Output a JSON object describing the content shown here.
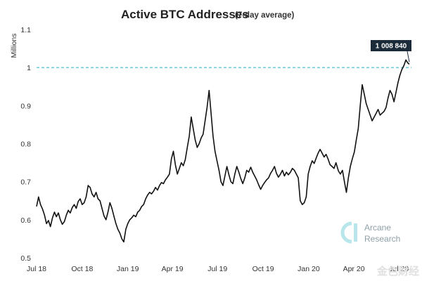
{
  "chart_data": {
    "type": "line",
    "title": "Active BTC Addresses",
    "subtitle": "(7-day average)",
    "ylabel": "Millions",
    "xlabel": "",
    "ylim": [
      0.5,
      1.1
    ],
    "yticks": [
      "0.5",
      "0.6",
      "0.7",
      "0.8",
      "0.9",
      "1",
      "1.1"
    ],
    "xticks": [
      {
        "label": "Jul 18",
        "x": "2018-07-01"
      },
      {
        "label": "Oct 18",
        "x": "2018-10-01"
      },
      {
        "label": "Jan 19",
        "x": "2019-01-01"
      },
      {
        "label": "Apr 19",
        "x": "2019-04-01"
      },
      {
        "label": "Jul 19",
        "x": "2019-07-01"
      },
      {
        "label": "Oct 19",
        "x": "2019-10-01"
      },
      {
        "label": "Jan 20",
        "x": "2020-01-01"
      },
      {
        "label": "Apr 20",
        "x": "2020-04-01"
      },
      {
        "label": "Jul 20",
        "x": "2020-07-01"
      }
    ],
    "grid": false,
    "reference_line": {
      "y": 1.0,
      "style": "dashed",
      "color": "#5bc8d8"
    },
    "annotation": {
      "text": "1 008 840",
      "x": "2020-07-22",
      "y": 1.00884
    },
    "series": [
      {
        "color": "#111111",
        "points": [
          [
            "2018-07-01",
            0.635
          ],
          [
            "2018-07-05",
            0.66
          ],
          [
            "2018-07-09",
            0.64
          ],
          [
            "2018-07-13",
            0.628
          ],
          [
            "2018-07-17",
            0.612
          ],
          [
            "2018-07-21",
            0.59
          ],
          [
            "2018-07-25",
            0.598
          ],
          [
            "2018-07-29",
            0.582
          ],
          [
            "2018-08-02",
            0.605
          ],
          [
            "2018-08-06",
            0.62
          ],
          [
            "2018-08-10",
            0.608
          ],
          [
            "2018-08-14",
            0.618
          ],
          [
            "2018-08-18",
            0.6
          ],
          [
            "2018-08-22",
            0.588
          ],
          [
            "2018-08-26",
            0.595
          ],
          [
            "2018-08-30",
            0.612
          ],
          [
            "2018-09-03",
            0.625
          ],
          [
            "2018-09-07",
            0.618
          ],
          [
            "2018-09-11",
            0.632
          ],
          [
            "2018-09-15",
            0.64
          ],
          [
            "2018-09-19",
            0.63
          ],
          [
            "2018-09-23",
            0.648
          ],
          [
            "2018-09-27",
            0.655
          ],
          [
            "2018-10-01",
            0.64
          ],
          [
            "2018-10-05",
            0.645
          ],
          [
            "2018-10-09",
            0.66
          ],
          [
            "2018-10-13",
            0.69
          ],
          [
            "2018-10-17",
            0.685
          ],
          [
            "2018-10-21",
            0.668
          ],
          [
            "2018-10-25",
            0.66
          ],
          [
            "2018-10-29",
            0.672
          ],
          [
            "2018-11-02",
            0.655
          ],
          [
            "2018-11-06",
            0.65
          ],
          [
            "2018-11-10",
            0.63
          ],
          [
            "2018-11-14",
            0.61
          ],
          [
            "2018-11-18",
            0.6
          ],
          [
            "2018-11-22",
            0.62
          ],
          [
            "2018-11-26",
            0.645
          ],
          [
            "2018-11-30",
            0.63
          ],
          [
            "2018-12-04",
            0.61
          ],
          [
            "2018-12-08",
            0.59
          ],
          [
            "2018-12-12",
            0.575
          ],
          [
            "2018-12-16",
            0.565
          ],
          [
            "2018-12-20",
            0.55
          ],
          [
            "2018-12-24",
            0.542
          ],
          [
            "2018-12-28",
            0.575
          ],
          [
            "2019-01-01",
            0.59
          ],
          [
            "2019-01-05",
            0.6
          ],
          [
            "2019-01-09",
            0.605
          ],
          [
            "2019-01-13",
            0.612
          ],
          [
            "2019-01-17",
            0.608
          ],
          [
            "2019-01-21",
            0.62
          ],
          [
            "2019-01-25",
            0.625
          ],
          [
            "2019-01-29",
            0.635
          ],
          [
            "2019-02-02",
            0.64
          ],
          [
            "2019-02-06",
            0.655
          ],
          [
            "2019-02-10",
            0.665
          ],
          [
            "2019-02-14",
            0.672
          ],
          [
            "2019-02-18",
            0.668
          ],
          [
            "2019-02-22",
            0.675
          ],
          [
            "2019-02-26",
            0.685
          ],
          [
            "2019-03-02",
            0.678
          ],
          [
            "2019-03-06",
            0.69
          ],
          [
            "2019-03-10",
            0.698
          ],
          [
            "2019-03-14",
            0.695
          ],
          [
            "2019-03-18",
            0.705
          ],
          [
            "2019-03-22",
            0.712
          ],
          [
            "2019-03-26",
            0.72
          ],
          [
            "2019-03-30",
            0.76
          ],
          [
            "2019-04-03",
            0.78
          ],
          [
            "2019-04-07",
            0.745
          ],
          [
            "2019-04-11",
            0.72
          ],
          [
            "2019-04-15",
            0.735
          ],
          [
            "2019-04-19",
            0.75
          ],
          [
            "2019-04-23",
            0.742
          ],
          [
            "2019-04-27",
            0.758
          ],
          [
            "2019-05-01",
            0.79
          ],
          [
            "2019-05-05",
            0.82
          ],
          [
            "2019-05-09",
            0.87
          ],
          [
            "2019-05-13",
            0.84
          ],
          [
            "2019-05-17",
            0.81
          ],
          [
            "2019-05-21",
            0.79
          ],
          [
            "2019-05-25",
            0.8
          ],
          [
            "2019-05-29",
            0.815
          ],
          [
            "2019-06-02",
            0.825
          ],
          [
            "2019-06-06",
            0.86
          ],
          [
            "2019-06-10",
            0.895
          ],
          [
            "2019-06-14",
            0.94
          ],
          [
            "2019-06-18",
            0.88
          ],
          [
            "2019-06-22",
            0.82
          ],
          [
            "2019-06-26",
            0.78
          ],
          [
            "2019-06-30",
            0.755
          ],
          [
            "2019-07-04",
            0.73
          ],
          [
            "2019-07-08",
            0.7
          ],
          [
            "2019-07-12",
            0.69
          ],
          [
            "2019-07-16",
            0.715
          ],
          [
            "2019-07-20",
            0.74
          ],
          [
            "2019-07-24",
            0.718
          ],
          [
            "2019-07-28",
            0.7
          ],
          [
            "2019-08-01",
            0.695
          ],
          [
            "2019-08-05",
            0.72
          ],
          [
            "2019-08-09",
            0.74
          ],
          [
            "2019-08-13",
            0.725
          ],
          [
            "2019-08-17",
            0.708
          ],
          [
            "2019-08-21",
            0.695
          ],
          [
            "2019-08-25",
            0.71
          ],
          [
            "2019-08-29",
            0.73
          ],
          [
            "2019-09-02",
            0.725
          ],
          [
            "2019-09-06",
            0.738
          ],
          [
            "2019-09-10",
            0.725
          ],
          [
            "2019-09-14",
            0.715
          ],
          [
            "2019-09-18",
            0.705
          ],
          [
            "2019-09-22",
            0.692
          ],
          [
            "2019-09-26",
            0.68
          ],
          [
            "2019-09-30",
            0.69
          ],
          [
            "2019-10-04",
            0.698
          ],
          [
            "2019-10-08",
            0.705
          ],
          [
            "2019-10-12",
            0.71
          ],
          [
            "2019-10-16",
            0.722
          ],
          [
            "2019-10-20",
            0.73
          ],
          [
            "2019-10-24",
            0.74
          ],
          [
            "2019-10-28",
            0.722
          ],
          [
            "2019-11-01",
            0.712
          ],
          [
            "2019-11-05",
            0.72
          ],
          [
            "2019-11-09",
            0.73
          ],
          [
            "2019-11-13",
            0.715
          ],
          [
            "2019-11-17",
            0.725
          ],
          [
            "2019-11-21",
            0.718
          ],
          [
            "2019-11-25",
            0.725
          ],
          [
            "2019-11-29",
            0.735
          ],
          [
            "2019-12-03",
            0.73
          ],
          [
            "2019-12-07",
            0.72
          ],
          [
            "2019-12-11",
            0.71
          ],
          [
            "2019-12-15",
            0.65
          ],
          [
            "2019-12-19",
            0.64
          ],
          [
            "2019-12-23",
            0.645
          ],
          [
            "2019-12-27",
            0.66
          ],
          [
            "2019-12-31",
            0.72
          ],
          [
            "2020-01-04",
            0.74
          ],
          [
            "2020-01-08",
            0.755
          ],
          [
            "2020-01-12",
            0.748
          ],
          [
            "2020-01-16",
            0.762
          ],
          [
            "2020-01-20",
            0.775
          ],
          [
            "2020-01-24",
            0.785
          ],
          [
            "2020-01-28",
            0.775
          ],
          [
            "2020-02-01",
            0.765
          ],
          [
            "2020-02-05",
            0.772
          ],
          [
            "2020-02-09",
            0.76
          ],
          [
            "2020-02-13",
            0.745
          ],
          [
            "2020-02-17",
            0.74
          ],
          [
            "2020-02-21",
            0.735
          ],
          [
            "2020-02-25",
            0.75
          ],
          [
            "2020-03-01",
            0.728
          ],
          [
            "2020-03-05",
            0.72
          ],
          [
            "2020-03-09",
            0.73
          ],
          [
            "2020-03-13",
            0.7
          ],
          [
            "2020-03-17",
            0.672
          ],
          [
            "2020-03-21",
            0.71
          ],
          [
            "2020-03-25",
            0.74
          ],
          [
            "2020-03-29",
            0.76
          ],
          [
            "2020-04-02",
            0.778
          ],
          [
            "2020-04-06",
            0.81
          ],
          [
            "2020-04-10",
            0.84
          ],
          [
            "2020-04-14",
            0.9
          ],
          [
            "2020-04-18",
            0.955
          ],
          [
            "2020-04-22",
            0.93
          ],
          [
            "2020-04-26",
            0.905
          ],
          [
            "2020-04-30",
            0.89
          ],
          [
            "2020-05-04",
            0.875
          ],
          [
            "2020-05-08",
            0.86
          ],
          [
            "2020-05-12",
            0.87
          ],
          [
            "2020-05-16",
            0.88
          ],
          [
            "2020-05-20",
            0.89
          ],
          [
            "2020-05-24",
            0.875
          ],
          [
            "2020-05-28",
            0.88
          ],
          [
            "2020-06-01",
            0.885
          ],
          [
            "2020-06-05",
            0.895
          ],
          [
            "2020-06-09",
            0.92
          ],
          [
            "2020-06-13",
            0.94
          ],
          [
            "2020-06-17",
            0.93
          ],
          [
            "2020-06-21",
            0.91
          ],
          [
            "2020-06-25",
            0.935
          ],
          [
            "2020-06-29",
            0.96
          ],
          [
            "2020-07-03",
            0.98
          ],
          [
            "2020-07-07",
            0.995
          ],
          [
            "2020-07-11",
            1.005
          ],
          [
            "2020-07-15",
            1.02
          ],
          [
            "2020-07-19",
            1.012
          ],
          [
            "2020-07-22",
            1.00884
          ]
        ]
      }
    ]
  },
  "branding": {
    "line1": "Arcane",
    "line2": "Research",
    "color": "#8fa0a8"
  },
  "watermark": {
    "text": "金色财经"
  }
}
